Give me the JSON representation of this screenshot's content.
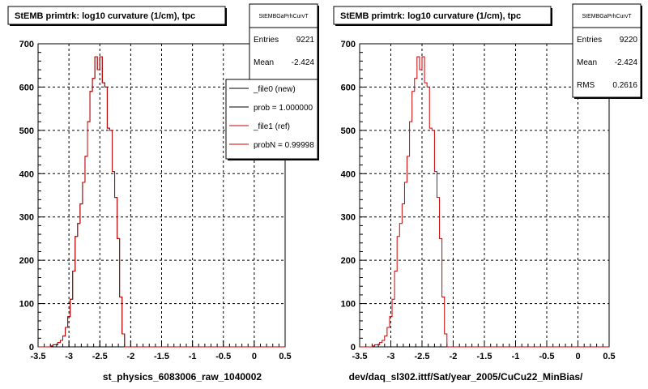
{
  "canvas": {
    "background": "#ffffff",
    "frame_color": "#000000",
    "ref_color": "#cc0000"
  },
  "footer": {
    "left_label": ""
  },
  "chart_data": [
    {
      "type": "histogram",
      "title": "StEMB primtrk: log10 curvature (1/cm), tpc",
      "xlabel": "st_physics_6083006_raw_1040002",
      "ylabel": "",
      "xlim": [
        -3.5,
        0.5
      ],
      "ylim": [
        0,
        700
      ],
      "x_ticks": [
        -3.5,
        -3,
        -2.5,
        -2,
        -1.5,
        -1,
        -0.5,
        0,
        0.5
      ],
      "y_ticks": [
        0,
        100,
        200,
        300,
        400,
        500,
        600,
        700
      ],
      "grid": true,
      "bin_width": 0.04,
      "bin_start": -3.5,
      "series": [
        {
          "name": "_file0 (new)",
          "color": "#000000",
          "values": [
            0,
            0,
            0,
            0,
            0,
            2,
            5,
            5,
            10,
            15,
            25,
            45,
            70,
            110,
            175,
            255,
            285,
            330,
            380,
            440,
            520,
            590,
            620,
            670,
            640,
            670,
            610,
            600,
            505,
            500,
            405,
            345,
            250,
            115,
            30,
            0,
            0,
            0,
            0,
            0,
            0,
            0,
            0,
            0,
            0,
            0,
            0,
            0,
            0,
            0,
            0,
            0,
            0,
            0,
            0,
            0,
            0,
            0,
            0,
            0,
            0,
            0,
            0,
            0,
            0,
            0,
            0,
            0,
            0,
            0,
            0,
            0,
            0,
            0,
            0,
            0,
            0,
            0,
            0,
            0,
            0,
            0,
            0,
            0,
            0,
            0,
            0,
            0,
            0,
            0,
            0,
            0,
            0,
            0,
            0,
            0,
            0,
            0,
            0,
            0
          ]
        },
        {
          "name": "_file1 (ref)",
          "color": "#cc0000",
          "values": [
            0,
            0,
            0,
            0,
            0,
            2,
            5,
            5,
            10,
            15,
            25,
            45,
            70,
            110,
            175,
            255,
            285,
            330,
            380,
            440,
            520,
            590,
            620,
            670,
            640,
            670,
            610,
            600,
            505,
            500,
            405,
            345,
            250,
            115,
            30,
            0,
            0,
            0,
            0,
            0,
            0,
            0,
            0,
            0,
            0,
            0,
            0,
            0,
            0,
            0,
            0,
            0,
            0,
            0,
            0,
            0,
            0,
            0,
            0,
            0,
            0,
            0,
            0,
            0,
            0,
            0,
            0,
            0,
            0,
            0,
            0,
            0,
            0,
            0,
            0,
            0,
            0,
            0,
            0,
            0,
            0,
            0,
            0,
            0,
            0,
            0,
            0,
            0,
            0,
            0,
            0,
            0,
            0,
            0,
            0,
            0,
            0,
            0,
            0,
            0
          ]
        }
      ],
      "stats": {
        "name": "StEMBGaPrhCurvT",
        "entries_label": "Entries",
        "entries": "9221",
        "mean_label": "Mean",
        "mean": "-2.424"
      },
      "legend": {
        "items": [
          {
            "label": "_file0 (new)",
            "color": "#000000"
          },
          {
            "label": "prob = 1.000000",
            "color": "#000000"
          },
          {
            "label": "_file1 (ref)",
            "color": "#cc0000"
          },
          {
            "label": "probN = 0.99998",
            "color": "#cc0000"
          }
        ]
      }
    },
    {
      "type": "histogram",
      "title": "StEMB primtrk: log10 curvature (1/cm), tpc",
      "xlabel": "dev/daq_sl302.ittf/Sat/year_2005/CuCu22_MinBias/",
      "ylabel": "",
      "xlim": [
        -3.5,
        0.5
      ],
      "ylim": [
        0,
        700
      ],
      "x_ticks": [
        -3.5,
        -3,
        -2.5,
        -2,
        -1.5,
        -1,
        -0.5,
        0,
        0.5
      ],
      "y_ticks": [
        0,
        100,
        200,
        300,
        400,
        500,
        600,
        700
      ],
      "grid": true,
      "bin_width": 0.04,
      "bin_start": -3.5,
      "series": [
        {
          "name": "_file1 (ref)",
          "color": "#cc0000",
          "values": [
            0,
            0,
            0,
            0,
            0,
            2,
            5,
            5,
            10,
            15,
            25,
            45,
            70,
            110,
            175,
            255,
            285,
            330,
            380,
            440,
            520,
            590,
            620,
            670,
            640,
            670,
            610,
            600,
            505,
            500,
            405,
            345,
            250,
            115,
            30,
            0,
            0,
            0,
            0,
            0,
            0,
            0,
            0,
            0,
            0,
            0,
            0,
            0,
            0,
            0,
            0,
            0,
            0,
            0,
            0,
            0,
            0,
            0,
            0,
            0,
            0,
            0,
            0,
            0,
            0,
            0,
            0,
            0,
            0,
            0,
            0,
            0,
            0,
            0,
            0,
            0,
            0,
            0,
            0,
            0,
            0,
            0,
            0,
            0,
            0,
            0,
            0,
            0,
            0,
            0,
            0,
            0,
            0,
            0,
            0,
            0,
            0,
            0,
            0,
            0
          ]
        }
      ],
      "stats": {
        "name": "StEMBGaPrhCurvT",
        "entries_label": "Entries",
        "entries": "9220",
        "mean_label": "Mean",
        "mean": "-2.424",
        "rms_label": "RMS",
        "rms": "0.2616"
      }
    }
  ]
}
